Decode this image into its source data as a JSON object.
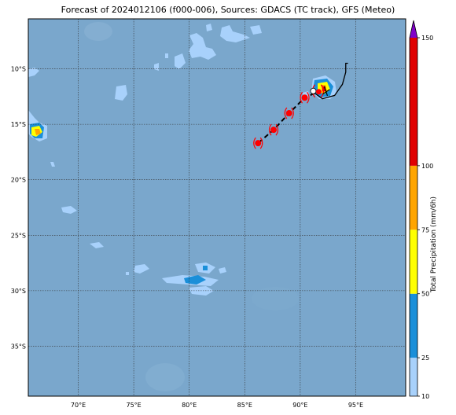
{
  "title": "Forecast of 2024012106 (f000-006), Sources: GDACS (TC track), GFS (Meteo)",
  "map": {
    "lon_range": [
      65.5,
      99.5
    ],
    "lat_range": [
      -39.5,
      -5.5
    ],
    "lon_ticks": [
      {
        "value": 70,
        "label": "70°E"
      },
      {
        "value": 75,
        "label": "75°E"
      },
      {
        "value": 80,
        "label": "80°E"
      },
      {
        "value": 85,
        "label": "85°E"
      },
      {
        "value": 90,
        "label": "90°E"
      },
      {
        "value": 95,
        "label": "95°E"
      }
    ],
    "lat_ticks": [
      {
        "value": -10,
        "label": "10°S"
      },
      {
        "value": -15,
        "label": "15°S"
      },
      {
        "value": -20,
        "label": "20°S"
      },
      {
        "value": -25,
        "label": "25°S"
      },
      {
        "value": -30,
        "label": "30°S"
      },
      {
        "value": -35,
        "label": "35°S"
      }
    ],
    "ocean_color": "#7aa7cc",
    "gridlines": "dotted"
  },
  "tc_track": {
    "observed_path": [
      [
        94.3,
        -9.5
      ],
      [
        94.1,
        -9.5
      ],
      [
        94.1,
        -10.3
      ],
      [
        93.8,
        -11.4
      ],
      [
        93.1,
        -12.4
      ],
      [
        92.0,
        -12.7
      ],
      [
        91.3,
        -12.2
      ]
    ],
    "forecast_path": [
      [
        91.3,
        -12.2
      ],
      [
        90.4,
        -12.6
      ],
      [
        89.0,
        -14.0
      ],
      [
        87.6,
        -15.5
      ],
      [
        86.2,
        -16.7
      ]
    ],
    "current_position": [
      91.6,
      -12.0
    ],
    "forecast_positions": [
      [
        90.4,
        -12.6
      ],
      [
        89.0,
        -14.0
      ],
      [
        87.6,
        -15.5
      ],
      [
        86.2,
        -16.7
      ]
    ],
    "line_color": "#000000",
    "marker_color": "#ff0000"
  },
  "colorbar": {
    "label": "Total Precipitation (mm/6h)",
    "ticks": [
      "10",
      "25",
      "50",
      "75",
      "100",
      "150"
    ],
    "bands": [
      {
        "from": 10,
        "to": 25,
        "color": "#a8d1fb"
      },
      {
        "from": 25,
        "to": 50,
        "color": "#1a8fd9"
      },
      {
        "from": 50,
        "to": 75,
        "color": "#ffff00"
      },
      {
        "from": 75,
        "to": 100,
        "color": "#ffa500"
      },
      {
        "from": 100,
        "to": 150,
        "color": "#e00000"
      }
    ],
    "extend_color": "#8000c8"
  }
}
